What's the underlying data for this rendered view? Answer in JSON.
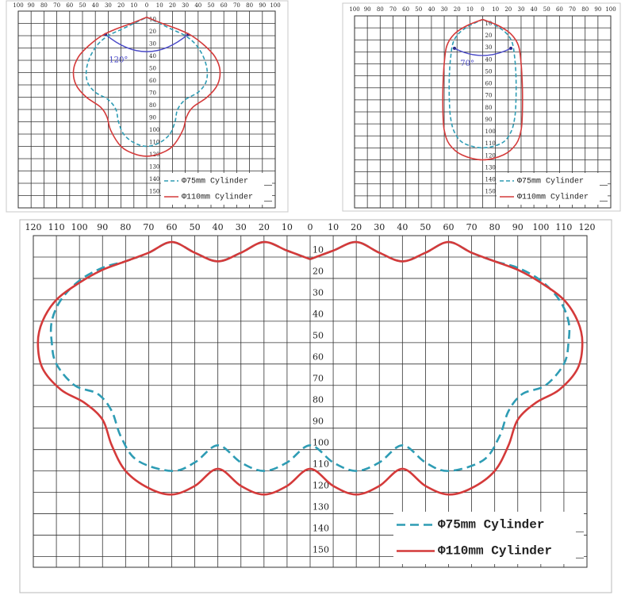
{
  "chart_data": [
    {
      "type": "line",
      "legend": "lower right",
      "grid": true,
      "annotation": "120°",
      "xlim": [
        -100,
        100
      ],
      "xticks": [
        {
          "value": -100,
          "label": "100"
        },
        {
          "value": -90,
          "label": "90"
        },
        {
          "value": -80,
          "label": "80"
        },
        {
          "value": -70,
          "label": "70"
        },
        {
          "value": -60,
          "label": "60"
        },
        {
          "value": -50,
          "label": "50"
        },
        {
          "value": -40,
          "label": "40"
        },
        {
          "value": -30,
          "label": "30"
        },
        {
          "value": -20,
          "label": "20"
        },
        {
          "value": -10,
          "label": "10"
        },
        0,
        10,
        20,
        30,
        40,
        50,
        60,
        70,
        80,
        90,
        100
      ],
      "ylim": [
        0,
        160
      ],
      "yticks": [
        10,
        20,
        30,
        40,
        50,
        60,
        70,
        80,
        90,
        100,
        110,
        120,
        130,
        140,
        150
      ],
      "series": [
        {
          "name": "Φ75mm Cylinder",
          "color": "#2e9cb4",
          "line_style": "dashed",
          "x": [
            0,
            10,
            20,
            30,
            38,
            44,
            47,
            46,
            40,
            30,
            24,
            22,
            18,
            10,
            0,
            -10,
            -18,
            -22,
            -24,
            -30,
            -40,
            -46,
            -47,
            -44,
            -38,
            -30,
            -20,
            -10,
            0
          ],
          "values": [
            5,
            10,
            15,
            20,
            27,
            37,
            48,
            58,
            66,
            72,
            80,
            90,
            100,
            107,
            110,
            107,
            100,
            90,
            80,
            72,
            66,
            58,
            48,
            37,
            27,
            20,
            15,
            10,
            5
          ]
        },
        {
          "name": "Φ110mm Cylinder",
          "color": "#d43a3a",
          "line_style": "solid",
          "x": [
            0,
            12,
            25,
            35,
            45,
            53,
            57,
            55,
            47,
            36,
            31,
            28,
            20,
            10,
            0,
            -10,
            -20,
            -28,
            -31,
            -36,
            -47,
            -55,
            -57,
            -53,
            -45,
            -35,
            -25,
            -12,
            0
          ],
          "values": [
            5,
            10,
            15,
            20,
            28,
            37,
            48,
            60,
            70,
            78,
            86,
            97,
            110,
            116,
            118,
            116,
            110,
            97,
            86,
            78,
            70,
            60,
            48,
            37,
            28,
            20,
            15,
            10,
            5
          ]
        }
      ]
    },
    {
      "type": "line",
      "legend": "lower right",
      "grid": true,
      "annotation": "70°",
      "xlim": [
        -100,
        100
      ],
      "xticks": [
        {
          "value": -100,
          "label": "100"
        },
        {
          "value": -90,
          "label": "90"
        },
        {
          "value": -80,
          "label": "80"
        },
        {
          "value": -70,
          "label": "70"
        },
        {
          "value": -60,
          "label": "60"
        },
        {
          "value": -50,
          "label": "50"
        },
        {
          "value": -40,
          "label": "40"
        },
        {
          "value": -30,
          "label": "30"
        },
        {
          "value": -20,
          "label": "20"
        },
        {
          "value": -10,
          "label": "10"
        },
        0,
        10,
        20,
        30,
        40,
        50,
        60,
        70,
        80,
        90,
        100
      ],
      "ylim": [
        0,
        160
      ],
      "yticks": [
        10,
        20,
        30,
        40,
        50,
        60,
        70,
        80,
        90,
        100,
        110,
        120,
        130,
        140,
        150
      ],
      "series": [
        {
          "name": "Φ75mm Cylinder",
          "color": "#2e9cb4",
          "line_style": "dashed",
          "x": [
            0,
            10,
            18,
            23,
            25,
            26,
            26,
            25,
            22,
            15,
            0,
            -15,
            -22,
            -25,
            -26,
            -26,
            -25,
            -23,
            -18,
            -10,
            0
          ],
          "values": [
            3,
            8,
            14,
            22,
            35,
            50,
            70,
            85,
            97,
            106,
            110,
            106,
            97,
            85,
            70,
            50,
            35,
            22,
            14,
            8,
            3
          ]
        },
        {
          "name": "Φ110mm Cylinder",
          "color": "#d43a3a",
          "line_style": "solid",
          "x": [
            0,
            12,
            22,
            28,
            30,
            31,
            31,
            30,
            26,
            16,
            0,
            -16,
            -26,
            -30,
            -31,
            -31,
            -30,
            -28,
            -22,
            -12,
            0
          ],
          "values": [
            3,
            8,
            15,
            25,
            40,
            60,
            80,
            95,
            107,
            116,
            120,
            116,
            107,
            95,
            80,
            60,
            40,
            25,
            15,
            8,
            3
          ]
        }
      ]
    },
    {
      "type": "line",
      "legend": "lower right",
      "grid": true,
      "xlim": [
        -120,
        120
      ],
      "xticks": [
        {
          "value": -120,
          "label": "120"
        },
        {
          "value": -110,
          "label": "110"
        },
        {
          "value": -100,
          "label": "100"
        },
        {
          "value": -90,
          "label": "90"
        },
        {
          "value": -80,
          "label": "80"
        },
        {
          "value": -70,
          "label": "70"
        },
        {
          "value": -60,
          "label": "60"
        },
        {
          "value": -50,
          "label": "50"
        },
        {
          "value": -40,
          "label": "40"
        },
        {
          "value": -30,
          "label": "30"
        },
        {
          "value": -20,
          "label": "20"
        },
        {
          "value": -10,
          "label": "10"
        },
        0,
        10,
        20,
        30,
        40,
        50,
        60,
        70,
        80,
        90,
        100,
        110,
        120
      ],
      "ylim": [
        0,
        155
      ],
      "yticks": [
        10,
        20,
        30,
        40,
        50,
        60,
        70,
        80,
        90,
        100,
        110,
        120,
        130,
        140,
        150
      ],
      "series": [
        {
          "name": "Φ75mm Cylinder",
          "color": "#2e9cb4",
          "line_style": "dashed",
          "x": [
            0,
            10,
            20,
            30,
            40,
            50,
            60,
            70,
            80,
            90,
            100,
            108,
            112,
            112,
            110,
            102,
            92,
            86,
            82,
            75,
            60,
            50,
            40,
            30,
            20,
            10,
            0,
            -10,
            -20,
            -30,
            -40,
            -50,
            -60,
            -75,
            -82,
            -86,
            -92,
            -102,
            -110,
            -112,
            -112,
            -108,
            -100,
            -90,
            -80,
            -70,
            -60,
            -50,
            -40,
            -30,
            -20,
            -10,
            0
          ],
          "values": [
            11,
            7,
            3,
            8,
            12,
            8,
            3,
            8,
            12,
            15,
            21,
            30,
            40,
            50,
            60,
            70,
            74,
            82,
            94,
            105,
            110,
            106,
            98,
            106,
            110,
            106,
            98,
            106,
            110,
            106,
            98,
            106,
            110,
            105,
            94,
            82,
            74,
            70,
            60,
            50,
            40,
            30,
            21,
            15,
            12,
            8,
            3,
            8,
            12,
            8,
            3,
            7,
            11
          ]
        },
        {
          "name": "Φ110mm Cylinder",
          "color": "#d43a3a",
          "line_style": "solid",
          "x": [
            0,
            10,
            20,
            30,
            40,
            50,
            60,
            70,
            80,
            90,
            100,
            110,
            116,
            118,
            116,
            108,
            98,
            90,
            86,
            80,
            70,
            60,
            50,
            40,
            30,
            20,
            10,
            0,
            -10,
            -20,
            -30,
            -40,
            -50,
            -60,
            -70,
            -80,
            -86,
            -90,
            -98,
            -108,
            -116,
            -118,
            -116,
            -110,
            -100,
            -90,
            -80,
            -70,
            -60,
            -50,
            -40,
            -30,
            -20,
            -10,
            0
          ],
          "values": [
            11,
            7,
            3,
            8,
            12,
            8,
            3,
            8,
            12,
            16,
            22,
            30,
            40,
            50,
            62,
            72,
            78,
            86,
            98,
            110,
            118,
            121,
            117,
            109,
            117,
            121,
            117,
            109,
            117,
            121,
            117,
            109,
            117,
            121,
            118,
            110,
            98,
            86,
            78,
            72,
            62,
            50,
            40,
            30,
            22,
            16,
            12,
            8,
            3,
            8,
            12,
            8,
            3,
            7,
            11
          ]
        }
      ]
    }
  ]
}
